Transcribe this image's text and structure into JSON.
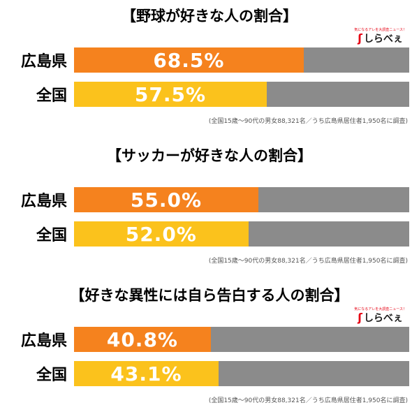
{
  "logo": {
    "tagline": "気になるアレを大調査ニュース！",
    "text": "しらべぇ",
    "icon_glyph": "ʃ",
    "accent": "#e60012"
  },
  "colors": {
    "bar_hiroshima": "#f5821e",
    "bar_zenkoku": "#fbc21c",
    "bar_remainder": "#8b8b8b",
    "value_text": "#ffffff",
    "title_text": "#000000",
    "footnote_text": "#555555"
  },
  "chart_data": [
    {
      "type": "bar",
      "orientation": "horizontal",
      "title": "【野球が好きな人の割合】",
      "categories": [
        "広島県",
        "全国"
      ],
      "values": [
        68.5,
        57.5
      ],
      "value_labels": [
        "68.5%",
        "57.5%"
      ],
      "xlim": [
        0,
        100
      ],
      "legend": "none",
      "grid": false,
      "footnote": "(全国15歳〜90代の男女88,321名／うち広島県居住者1,950名に調査)"
    },
    {
      "type": "bar",
      "orientation": "horizontal",
      "title": "【サッカーが好きな人の割合】",
      "categories": [
        "広島県",
        "全国"
      ],
      "values": [
        55.0,
        52.0
      ],
      "value_labels": [
        "55.0%",
        "52.0%"
      ],
      "xlim": [
        0,
        100
      ],
      "legend": "none",
      "grid": false,
      "footnote": "(全国15歳〜90代の男女88,321名／うち広島県居住者1,950名に調査)"
    },
    {
      "type": "bar",
      "orientation": "horizontal",
      "title": "【好きな異性には自ら告白する人の割合】",
      "categories": [
        "広島県",
        "全国"
      ],
      "values": [
        40.8,
        43.1
      ],
      "value_labels": [
        "40.8%",
        "43.1%"
      ],
      "xlim": [
        0,
        100
      ],
      "legend": "none",
      "grid": false,
      "footnote": "(全国15歳〜90代の男女88,321名／うち広島県居住者1,950名に調査)"
    }
  ]
}
